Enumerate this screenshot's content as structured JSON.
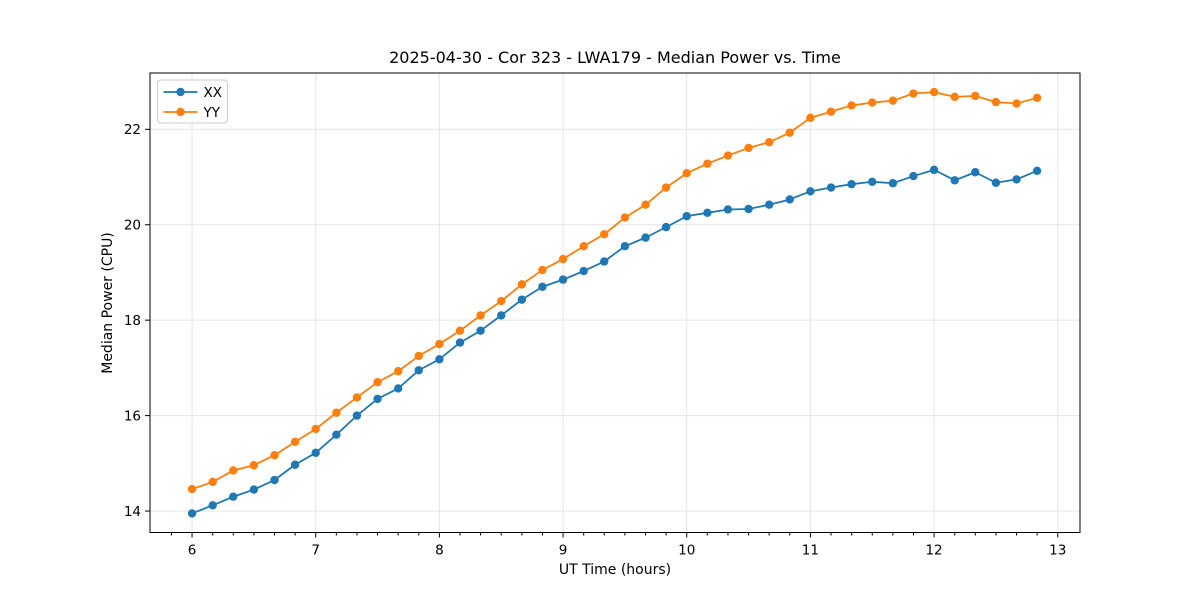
{
  "chart_data": {
    "type": "line",
    "title": "2025-04-30 - Cor 323 - LWA179 - Median Power vs. Time",
    "xlabel": "UT Time (hours)",
    "ylabel": "Median Power (CPU)",
    "xlim": [
      5.66,
      13.18
    ],
    "ylim": [
      13.55,
      23.18
    ],
    "x_ticks": [
      6,
      7,
      8,
      9,
      10,
      11,
      12,
      13
    ],
    "y_ticks": [
      14,
      16,
      18,
      20,
      22
    ],
    "x_minor_tick_step": 0.16667,
    "grid": true,
    "legend_position": "upper-left",
    "grid_color": "#e5e5e5",
    "spine_color": "#000000",
    "legend_border_color": "#cccccc",
    "x": [
      6.0,
      6.167,
      6.333,
      6.5,
      6.667,
      6.833,
      7.0,
      7.167,
      7.333,
      7.5,
      7.667,
      7.833,
      8.0,
      8.167,
      8.333,
      8.5,
      8.667,
      8.833,
      9.0,
      9.167,
      9.333,
      9.5,
      9.667,
      9.833,
      10.0,
      10.167,
      10.333,
      10.5,
      10.667,
      10.833,
      11.0,
      11.167,
      11.333,
      11.5,
      11.667,
      11.833,
      12.0,
      12.167,
      12.333,
      12.5,
      12.667,
      12.833
    ],
    "series": [
      {
        "name": "XX",
        "color": "#1f77b4",
        "values": [
          13.95,
          14.12,
          14.3,
          14.45,
          14.65,
          14.97,
          15.22,
          15.6,
          16.0,
          16.35,
          16.57,
          16.95,
          17.18,
          17.53,
          17.78,
          18.1,
          18.43,
          18.7,
          18.85,
          19.03,
          19.23,
          19.55,
          19.73,
          19.95,
          20.18,
          20.25,
          20.32,
          20.33,
          20.42,
          20.53,
          20.7,
          20.78,
          20.85,
          20.9,
          20.87,
          21.02,
          21.15,
          20.93,
          21.1,
          20.88,
          20.95,
          21.13
        ]
      },
      {
        "name": "YY",
        "color": "#ff7f0e",
        "values": [
          14.46,
          14.61,
          14.85,
          14.96,
          15.17,
          15.45,
          15.72,
          16.06,
          16.38,
          16.7,
          16.93,
          17.25,
          17.5,
          17.78,
          18.1,
          18.4,
          18.75,
          19.05,
          19.28,
          19.55,
          19.8,
          20.15,
          20.42,
          20.78,
          21.08,
          21.28,
          21.45,
          21.61,
          21.73,
          21.93,
          22.24,
          22.37,
          22.5,
          22.56,
          22.6,
          22.75,
          22.78,
          22.68,
          22.7,
          22.57,
          22.54,
          22.66
        ]
      }
    ]
  }
}
